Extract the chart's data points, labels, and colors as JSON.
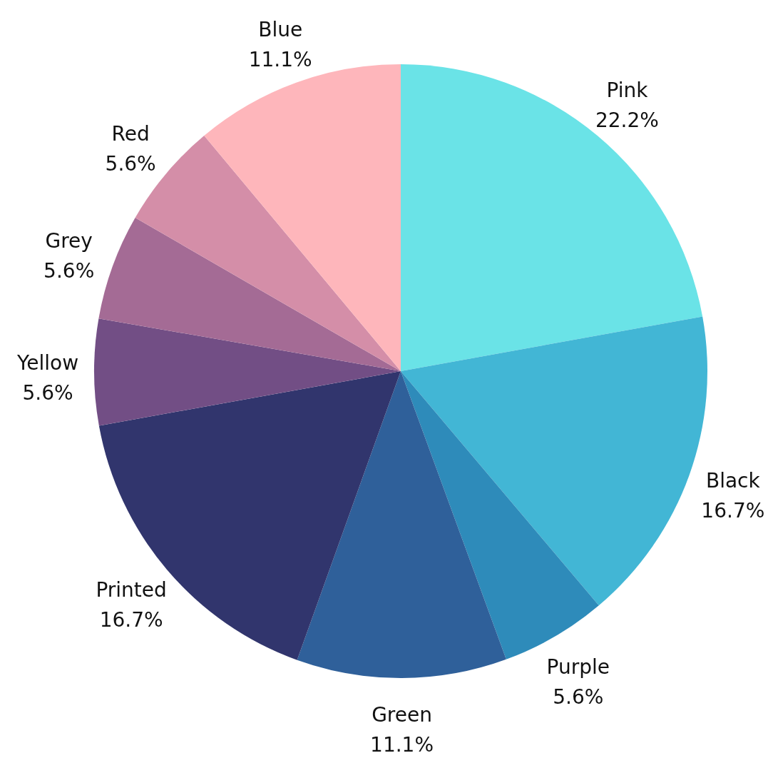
{
  "chart_data": {
    "type": "pie",
    "categories": [
      "Pink",
      "Black",
      "Purple",
      "Green",
      "Printed",
      "Yellow",
      "Grey",
      "Red",
      "Blue"
    ],
    "values": [
      22.2,
      16.7,
      5.6,
      11.1,
      16.7,
      5.6,
      5.6,
      5.6,
      11.1
    ],
    "colors": [
      "#6ae3e7",
      "#42b6d5",
      "#2e8bba",
      "#2f609a",
      "#31356d",
      "#724e85",
      "#a46b95",
      "#d48ea8",
      "#feb6bb"
    ],
    "value_labels": [
      "22.2%",
      "16.7%",
      "5.6%",
      "11.1%",
      "16.7%",
      "5.6%",
      "5.6%",
      "5.6%",
      "11.1%"
    ]
  }
}
